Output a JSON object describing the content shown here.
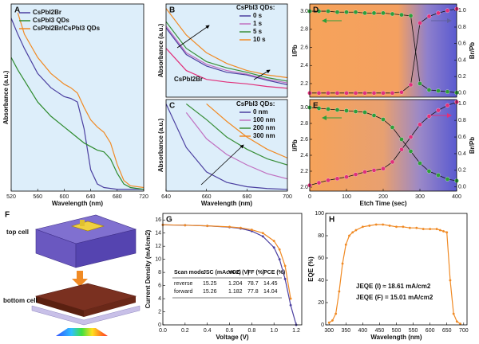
{
  "chart_data": [
    {
      "panel": "A",
      "type": "line",
      "xlabel": "Wavelength (nm)",
      "ylabel": "Absorbance (a.u.)",
      "x": [
        520,
        530,
        540,
        560,
        580,
        600,
        610,
        620,
        630,
        640,
        650,
        660,
        670,
        680,
        690,
        700,
        720
      ],
      "xlim": [
        520,
        720
      ],
      "ylim": [
        0,
        1.05
      ],
      "xticks": [
        520,
        560,
        600,
        640,
        680,
        720
      ],
      "series": [
        {
          "name": "CsPbI2Br",
          "color": "#4b3fa0",
          "values": [
            0.97,
            0.88,
            0.8,
            0.66,
            0.58,
            0.53,
            0.52,
            0.5,
            0.35,
            0.12,
            0.04,
            0.02,
            0.015,
            0.01,
            0.01,
            0.01,
            0.01
          ]
        },
        {
          "name": "CsPbI3 QDs",
          "color": "#2e8b2e",
          "values": [
            0.75,
            0.68,
            0.62,
            0.5,
            0.42,
            0.36,
            0.33,
            0.3,
            0.27,
            0.25,
            0.23,
            0.22,
            0.18,
            0.1,
            0.04,
            0.02,
            0.01
          ]
        },
        {
          "name": "CsPbI2Br/CsPbI3 QDs",
          "color": "#f08a24",
          "values": [
            null,
            1.0,
            0.88,
            0.75,
            0.66,
            0.6,
            0.58,
            0.55,
            0.47,
            0.4,
            0.36,
            0.33,
            0.27,
            0.15,
            0.06,
            0.03,
            0.02
          ]
        }
      ]
    },
    {
      "panel": "B",
      "type": "line",
      "ylabel": "Absorbance (a.u.)",
      "legend_title": "CsPbI3 QDs:",
      "x": [
        640,
        650,
        660,
        670,
        680,
        690,
        700
      ],
      "xlim": [
        640,
        700
      ],
      "ylim": [
        0,
        1.05
      ],
      "series": [
        {
          "name": "0 s",
          "color": "#4b3fa0",
          "values": [
            0.78,
            0.48,
            0.35,
            0.28,
            0.25,
            0.19,
            0.14
          ]
        },
        {
          "name": "1 s",
          "color": "#c070c0",
          "values": [
            0.8,
            0.5,
            0.37,
            0.3,
            0.26,
            0.2,
            0.16
          ]
        },
        {
          "name": "5 s",
          "color": "#3a8f3a",
          "values": [
            0.85,
            0.55,
            0.4,
            0.33,
            0.28,
            0.22,
            0.18
          ]
        },
        {
          "name": "10 s",
          "color": "#f08a24",
          "values": [
            1.0,
            0.7,
            0.5,
            0.38,
            0.3,
            0.25,
            0.22
          ]
        },
        {
          "name": "CsPbI2Br",
          "color": "#e0307a",
          "values": [
            0.55,
            0.3,
            0.2,
            0.17,
            0.15,
            0.12,
            0.1
          ]
        }
      ]
    },
    {
      "panel": "C",
      "type": "line",
      "xlabel": "Wavelength (nm)",
      "ylabel": "Absorbance (a.u.)",
      "legend_title": "CsPbI3 QDs:",
      "x": [
        640,
        650,
        660,
        670,
        680,
        690,
        700
      ],
      "xlim": [
        640,
        700
      ],
      "ylim": [
        0,
        1.05
      ],
      "xticks": [
        640,
        660,
        680,
        700
      ],
      "series": [
        {
          "name": "0 nm",
          "color": "#4b3fa0",
          "values": [
            1.0,
            0.5,
            0.22,
            0.1,
            0.05,
            0.03,
            0.02
          ]
        },
        {
          "name": "100 nm",
          "color": "#c070c0",
          "values": [
            null,
            0.9,
            0.6,
            0.42,
            0.3,
            0.2,
            0.14
          ]
        },
        {
          "name": "200 nm",
          "color": "#3a8f3a",
          "values": [
            null,
            1.0,
            0.82,
            0.62,
            0.48,
            0.37,
            0.3
          ]
        },
        {
          "name": "300 nm",
          "color": "#f08a24",
          "values": [
            null,
            null,
            1.0,
            0.8,
            0.62,
            0.48,
            0.38
          ]
        }
      ]
    },
    {
      "panel": "D",
      "type": "line",
      "markers": true,
      "ylabel": "I/Pb",
      "y2label": "Br/Pb",
      "x": [
        0,
        25,
        50,
        75,
        100,
        125,
        150,
        175,
        200,
        225,
        250,
        275,
        300,
        325,
        350,
        375,
        400
      ],
      "xlim": [
        0,
        400
      ],
      "ylim": [
        2.05,
        3.08
      ],
      "yticks": [
        2.2,
        2.4,
        2.6,
        2.8,
        {
          "value": 3,
          "label": "3.0"
        }
      ],
      "y2lim": [
        -0.05,
        1.08
      ],
      "y2ticks": [
        {
          "value": 0,
          "label": "0.0"
        },
        0.2,
        0.4,
        0.6,
        0.8,
        {
          "value": 1,
          "label": "1.0"
        }
      ],
      "series": [
        {
          "color": "#2e9e3a",
          "values": [
            3.0,
            3.0,
            3.0,
            2.99,
            2.99,
            2.99,
            2.98,
            2.98,
            2.98,
            2.97,
            2.96,
            2.95,
            2.2,
            2.13,
            2.12,
            2.11,
            2.1
          ]
        },
        {
          "color": "#e0307a",
          "axis": "y2",
          "values": [
            0.0,
            0.0,
            0.0,
            0.0,
            0.0,
            0.0,
            0.0,
            0.0,
            0.0,
            0.0,
            0.01,
            0.1,
            0.85,
            0.93,
            0.97,
            1.0,
            1.02
          ]
        }
      ]
    },
    {
      "panel": "E",
      "type": "line",
      "markers": true,
      "xlabel": "Etch Time (sec)",
      "ylabel": "I/Pb",
      "y2label": "Br/Pb",
      "x": [
        0,
        25,
        50,
        75,
        100,
        125,
        150,
        175,
        200,
        225,
        250,
        275,
        300,
        325,
        350,
        375,
        400
      ],
      "xlim": [
        0,
        400
      ],
      "xticks": [
        0,
        100,
        200,
        300,
        400
      ],
      "ylim": [
        1.95,
        3.1
      ],
      "yticks": [
        {
          "value": 2,
          "label": "2.0"
        },
        2.2,
        2.4,
        2.6,
        2.8,
        {
          "value": 3,
          "label": "3.0"
        }
      ],
      "y2lim": [
        -0.05,
        1.05
      ],
      "y2ticks": [
        {
          "value": 0,
          "label": "0.0"
        },
        0.2,
        0.4,
        0.6,
        0.8,
        {
          "value": 1,
          "label": "1.0"
        }
      ],
      "series": [
        {
          "color": "#2e9e3a",
          "values": [
            3.0,
            2.99,
            2.98,
            2.97,
            2.96,
            2.95,
            2.94,
            2.9,
            2.85,
            2.75,
            2.6,
            2.45,
            2.3,
            2.2,
            2.15,
            2.1,
            2.08
          ]
        },
        {
          "color": "#e0307a",
          "axis": "y2",
          "values": [
            0.02,
            0.05,
            0.08,
            0.1,
            0.12,
            0.15,
            0.18,
            0.2,
            0.22,
            0.3,
            0.45,
            0.6,
            0.75,
            0.85,
            0.92,
            0.98,
            1.02
          ]
        }
      ]
    },
    {
      "panel": "G",
      "type": "line",
      "markers": true,
      "xlabel": "Voltage (V)",
      "ylabel": "Current Density (mA/cm2)",
      "x": [
        0,
        0.2,
        0.4,
        0.6,
        0.7,
        0.8,
        0.9,
        1.0,
        1.05,
        1.1,
        1.15,
        1.2
      ],
      "xlim": [
        0,
        1.25
      ],
      "xticks": [
        {
          "value": 0,
          "label": "0.0"
        },
        0.2,
        0.4,
        0.6,
        0.8,
        {
          "value": 1,
          "label": "1.0"
        },
        1.2
      ],
      "ylim": [
        0,
        17
      ],
      "yticks": [
        0,
        2,
        4,
        6,
        8,
        10,
        12,
        14,
        16
      ],
      "series": [
        {
          "color": "#4b3fa0",
          "values": [
            15.25,
            15.2,
            15.1,
            14.9,
            14.7,
            14.3,
            13.5,
            11.8,
            10,
            7,
            3,
            0
          ]
        },
        {
          "color": "#f08a24",
          "values": [
            15.26,
            15.2,
            15.1,
            14.95,
            14.8,
            14.5,
            14.0,
            12.8,
            11.5,
            9,
            4,
            null
          ]
        }
      ],
      "table": {
        "header": [
          "Scan mode",
          "JSC (mAcm-2)",
          "VOC (V)",
          "FF (%)",
          "PCE (%)"
        ],
        "rows": [
          [
            "reverse",
            15.25,
            1.204,
            78.7,
            14.45
          ],
          [
            "forward",
            15.26,
            1.182,
            77.8,
            14.04
          ]
        ]
      }
    },
    {
      "panel": "H",
      "type": "line",
      "markers": true,
      "xlabel": "Wavelength (nm)",
      "ylabel": "EQE (%)",
      "x": [
        300,
        310,
        320,
        330,
        340,
        350,
        360,
        370,
        380,
        400,
        420,
        440,
        460,
        480,
        500,
        520,
        540,
        560,
        580,
        600,
        620,
        630,
        640,
        650,
        660,
        670,
        680,
        690
      ],
      "xlim": [
        290,
        710
      ],
      "xticks": [
        300,
        350,
        400,
        450,
        500,
        550,
        600,
        650,
        700
      ],
      "ylim": [
        0,
        100
      ],
      "yticks": [
        0,
        20,
        40,
        60,
        80,
        100
      ],
      "series": [
        {
          "color": "#f08a24",
          "values": [
            2,
            4,
            10,
            30,
            55,
            72,
            80,
            83,
            85,
            88,
            89,
            90,
            90,
            89,
            88,
            88,
            87,
            87,
            86,
            86,
            86,
            85,
            84,
            83,
            40,
            10,
            3,
            1
          ]
        }
      ],
      "annotations": [
        "JEQE (I) ≈ 18.61 mA/cm2",
        "JEQE (F) = 15.01 mA/cm2"
      ]
    }
  ],
  "diagram": {
    "panel": "F",
    "labels": [
      "top cell",
      "bottom cell"
    ]
  }
}
